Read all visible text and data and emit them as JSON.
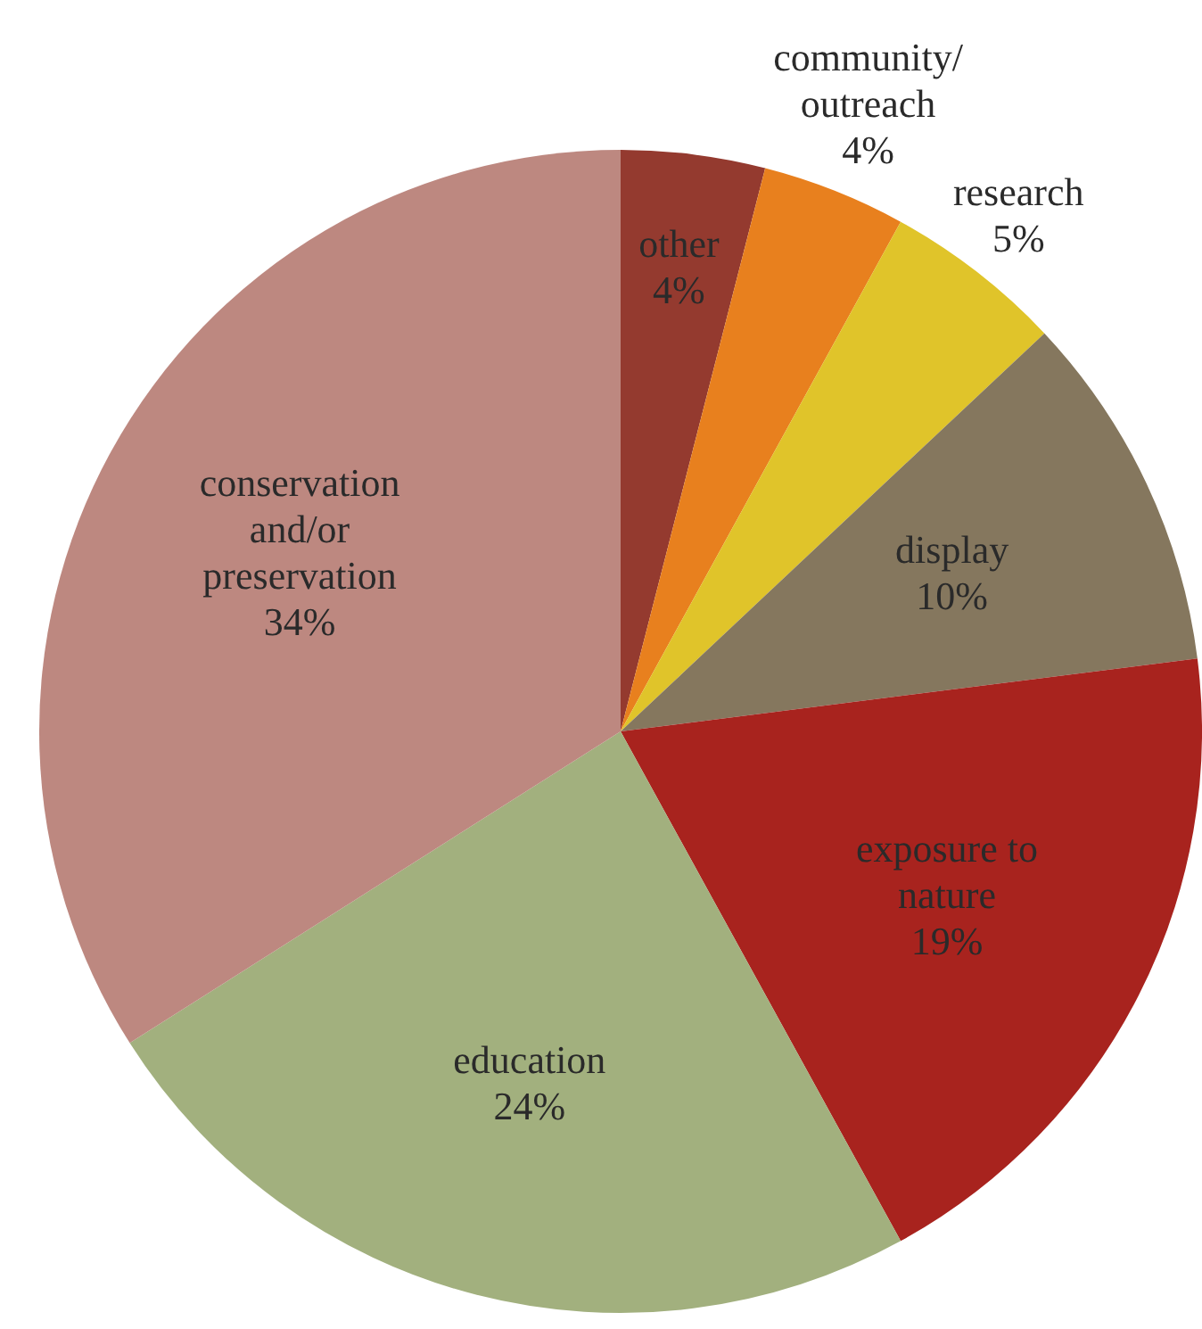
{
  "chart_data": {
    "type": "pie",
    "categories": [
      "other",
      "community/\noutreach",
      "research",
      "display",
      "exposure to\nnature",
      "education",
      "conservation\nand/or\npreservation"
    ],
    "values": [
      4,
      4,
      5,
      10,
      19,
      24,
      34
    ],
    "value_labels": [
      "4%",
      "4%",
      "5%",
      "10%",
      "19%",
      "24%",
      "34%"
    ],
    "colors": [
      "#943a2f",
      "#e8801e",
      "#e0c42a",
      "#85775e",
      "#a8231e",
      "#a2b07e",
      "#bd8880"
    ],
    "legend": false
  }
}
